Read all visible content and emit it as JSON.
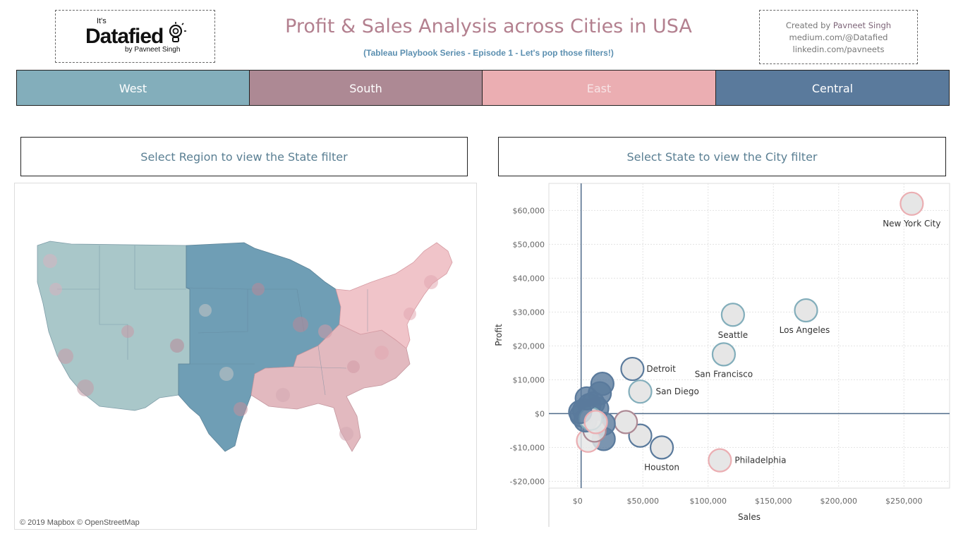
{
  "header": {
    "logo": {
      "top": "It's",
      "main": "Datafied",
      "by": "by Pavneet Singh"
    },
    "title": "Profit & Sales Analysis across Cities in USA",
    "subtitle": "(Tableau Playbook Series - Episode 1 - Let's pop those filters!)",
    "credits": {
      "line1_prefix": "Created by ",
      "line1_name": "Pavneet Singh",
      "line2": "medium.com/@Datafied",
      "line3": "linkedin.com/pavneets"
    }
  },
  "regions": [
    {
      "label": "West",
      "color": "#83aebb"
    },
    {
      "label": "South",
      "color": "#ad8994"
    },
    {
      "label": "East",
      "color": "#ebaeb2"
    },
    {
      "label": "Central",
      "color": "#5a7a9c"
    }
  ],
  "filters": {
    "state_prompt": "Select Region to view the State filter",
    "city_prompt": "Select State to view the City filter"
  },
  "map": {
    "attribution": "© 2019 Mapbox © OpenStreetMap"
  },
  "colors": {
    "west": "#83aebb",
    "south": "#ad8994",
    "east": "#ebaeb2",
    "central": "#5a7a9c",
    "bubble_fill": "#e6e6e6"
  },
  "chart_data": {
    "type": "scatter",
    "xlabel": "Sales",
    "ylabel": "Profit",
    "xlim": [
      -22000,
      285000
    ],
    "ylim": [
      -22000,
      68000
    ],
    "x_ticks": [
      0,
      50000,
      100000,
      150000,
      200000,
      250000
    ],
    "x_tick_labels": [
      "$0",
      "$50,000",
      "$100,000",
      "$150,000",
      "$200,000",
      "$250,000"
    ],
    "y_ticks": [
      -20000,
      -10000,
      0,
      10000,
      20000,
      30000,
      40000,
      50000,
      60000
    ],
    "y_tick_labels": [
      "-$20,000",
      "-$10,000",
      "$0",
      "$10,000",
      "$20,000",
      "$30,000",
      "$40,000",
      "$50,000",
      "$60,000"
    ],
    "reference_lines": {
      "x": 2700,
      "y": 0
    },
    "points": [
      {
        "city": "New York City",
        "sales": 256000,
        "profit": 62000,
        "region": "east",
        "label": "New York City"
      },
      {
        "city": "Los Angeles",
        "sales": 175000,
        "profit": 30500,
        "region": "west",
        "label": "Los Angeles"
      },
      {
        "city": "Seattle",
        "sales": 119000,
        "profit": 29200,
        "region": "west",
        "label": "Seattle"
      },
      {
        "city": "San Francisco",
        "sales": 112000,
        "profit": 17500,
        "region": "west",
        "label": "San Francisco"
      },
      {
        "city": "Detroit",
        "sales": 42000,
        "profit": 13200,
        "region": "central",
        "label": "Detroit"
      },
      {
        "city": "San Diego",
        "sales": 48000,
        "profit": 6500,
        "region": "west",
        "label": "San Diego"
      },
      {
        "city": "Houston",
        "sales": 64500,
        "profit": -10000,
        "region": "central",
        "label": "Houston"
      },
      {
        "city": "Philadelphia",
        "sales": 109000,
        "profit": -13800,
        "region": "east",
        "label": "Philadelphia"
      },
      {
        "city": "",
        "sales": 48000,
        "profit": -6500,
        "region": "central",
        "label": ""
      },
      {
        "city": "",
        "sales": 37000,
        "profit": -2500,
        "region": "south",
        "label": ""
      },
      {
        "city": "",
        "sales": 19000,
        "profit": 8800,
        "region": "central",
        "label": ""
      },
      {
        "city": "",
        "sales": 17000,
        "profit": 6000,
        "region": "central",
        "label": ""
      },
      {
        "city": "",
        "sales": 20000,
        "profit": -3000,
        "region": "central",
        "label": ""
      },
      {
        "city": "",
        "sales": 20000,
        "profit": -7500,
        "region": "central",
        "label": ""
      },
      {
        "city": "",
        "sales": 8000,
        "profit": -8000,
        "region": "east",
        "label": ""
      },
      {
        "city": "",
        "sales": 13000,
        "profit": -5000,
        "region": "south",
        "label": ""
      },
      {
        "city": "",
        "sales": 12000,
        "profit": 3000,
        "region": "central",
        "label": ""
      },
      {
        "city": "",
        "sales": 15000,
        "profit": 1500,
        "region": "central",
        "label": ""
      },
      {
        "city": "",
        "sales": 9000,
        "profit": 2500,
        "region": "central",
        "label": ""
      },
      {
        "city": "",
        "sales": 5000,
        "profit": 1000,
        "region": "central",
        "label": ""
      },
      {
        "city": "",
        "sales": 3000,
        "profit": -500,
        "region": "central",
        "label": ""
      },
      {
        "city": "",
        "sales": 6000,
        "profit": -2000,
        "region": "central",
        "label": ""
      },
      {
        "city": "",
        "sales": 10000,
        "profit": -1500,
        "region": "west",
        "label": ""
      },
      {
        "city": "",
        "sales": 2000,
        "profit": 500,
        "region": "central",
        "label": ""
      },
      {
        "city": "",
        "sales": 7000,
        "profit": 4500,
        "region": "central",
        "label": ""
      },
      {
        "city": "",
        "sales": 14000,
        "profit": -2500,
        "region": "east",
        "label": ""
      }
    ]
  }
}
